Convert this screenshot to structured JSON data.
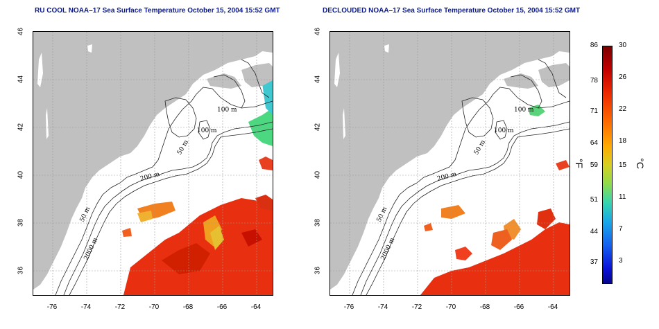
{
  "panels": [
    {
      "title": "RU COOL NOAA–17 Sea Surface Temperature October 15, 2004 15:52 GMT"
    },
    {
      "title": "DECLOUDED NOAA–17 Sea Surface Temperature October 15, 2004 15:52 GMT"
    }
  ],
  "map": {
    "lat_ticks": [
      "46",
      "44",
      "42",
      "40",
      "38",
      "36"
    ],
    "lon_ticks": [
      "-76",
      "-74",
      "-72",
      "-70",
      "-68",
      "-66",
      "-64"
    ],
    "contour_labels": [
      "100 m",
      "100 m",
      "50 m",
      "200 m",
      "50 m",
      "2000 m"
    ],
    "land_color": "#c0c0c0"
  },
  "colorbar": {
    "fahrenheit_ticks": [
      "86",
      "78",
      "71",
      "64",
      "59",
      "51",
      "44",
      "37"
    ],
    "celsius_ticks": [
      "30",
      "26",
      "22",
      "18",
      "15",
      "11",
      "7",
      "3"
    ],
    "left_unit": "°F",
    "right_unit": "°C"
  }
}
